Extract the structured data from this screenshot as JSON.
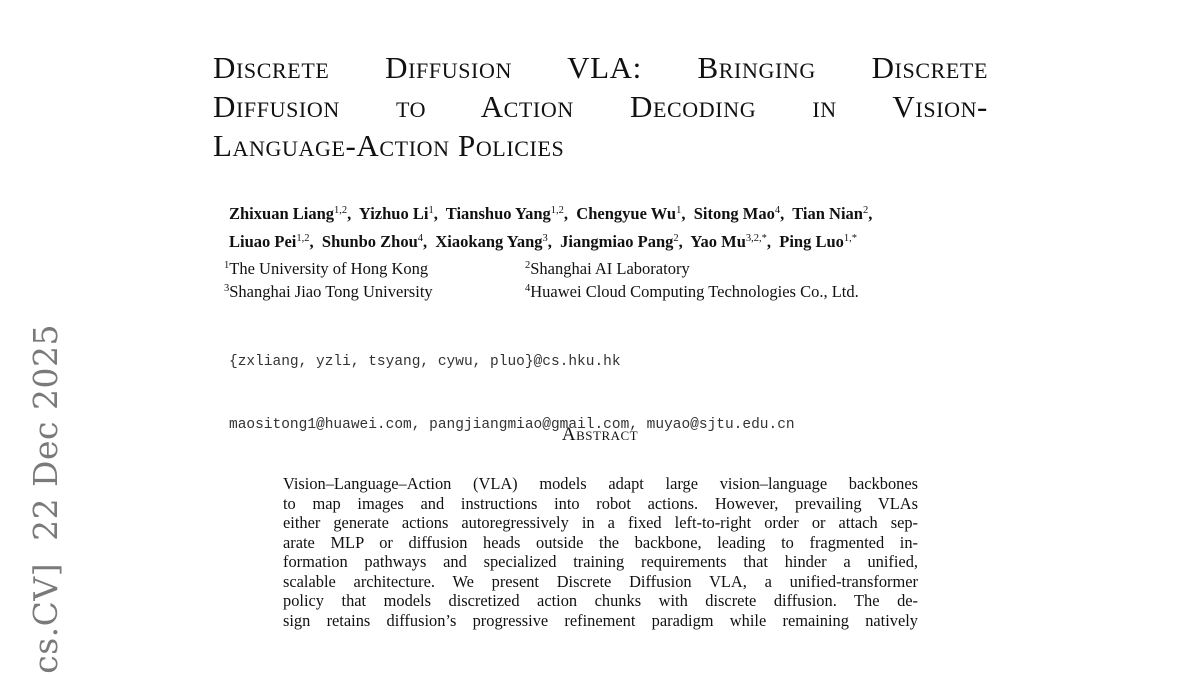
{
  "arxiv_stamp": "cs.CV]  22 Dec 2025",
  "title_lines": [
    "Discrete Diffusion VLA: Bringing Discrete",
    "Diffusion to Action Decoding in Vision-",
    "Language-Action Policies"
  ],
  "authors": [
    {
      "name": "Zhixuan Liang",
      "sup": "1,2"
    },
    {
      "name": "Yizhuo Li",
      "sup": "1"
    },
    {
      "name": "Tianshuo Yang",
      "sup": "1,2"
    },
    {
      "name": "Chengyue Wu",
      "sup": "1"
    },
    {
      "name": "Sitong Mao",
      "sup": "4"
    },
    {
      "name": "Tian Nian",
      "sup": "2"
    },
    {
      "name": "Liuao Pei",
      "sup": "1,2"
    },
    {
      "name": "Shunbo Zhou",
      "sup": "4"
    },
    {
      "name": "Xiaokang Yang",
      "sup": "3"
    },
    {
      "name": "Jiangmiao Pang",
      "sup": "2"
    },
    {
      "name": "Yao Mu",
      "sup": "3,2,*"
    },
    {
      "name": "Ping Luo",
      "sup": "1,*"
    }
  ],
  "affiliations": [
    {
      "sup": "1",
      "name": "The University of Hong Kong"
    },
    {
      "sup": "2",
      "name": "Shanghai AI Laboratory"
    },
    {
      "sup": "3",
      "name": "Shanghai Jiao Tong University"
    },
    {
      "sup": "4",
      "name": "Huawei Cloud Computing Technologies Co., Ltd."
    }
  ],
  "emails": [
    "{zxliang, yzli, tsyang, cywu, pluo}@cs.hku.hk",
    "maositong1@huawei.com, pangjiangmiao@gmail.com, muyao@sjtu.edu.cn"
  ],
  "abstract_heading": "Abstract",
  "abstract_lines": [
    "Vision–Language–Action (VLA) models adapt large vision–language backbones",
    "to map images and instructions into robot actions.  However, prevailing VLAs",
    "either generate actions autoregressively in a fixed left-to-right order or attach sep-",
    "arate MLP or diffusion heads outside the backbone, leading to fragmented in-",
    "formation pathways and specialized training requirements that hinder a unified,",
    "scalable architecture. We present Discrete Diffusion VLA, a unified-transformer",
    "policy that models discretized action chunks with discrete diffusion.  The de-",
    "sign retains diffusion’s progressive refinement paradigm while remaining natively"
  ]
}
